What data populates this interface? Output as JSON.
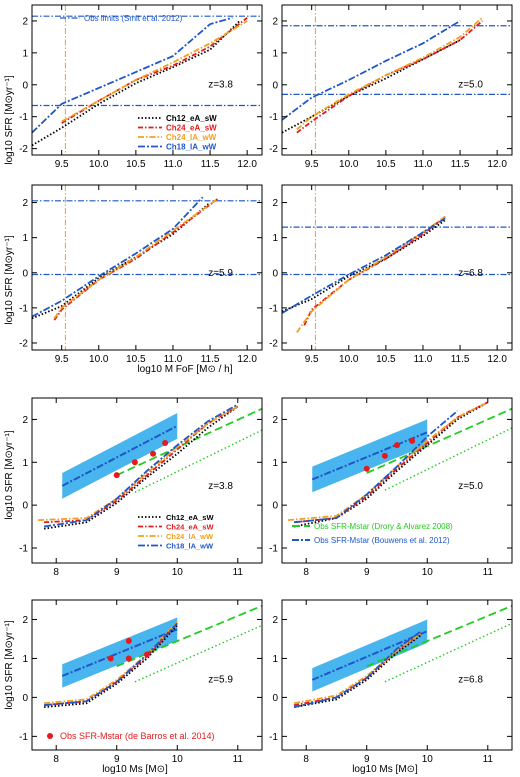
{
  "colors": {
    "ch12_eA_sW": "#000000",
    "ch24_eA_sW": "#e41a1c",
    "ch24_lA_wW": "#f0a020",
    "ch18_lA_wW": "#1f57c9",
    "obs_limit_line": "#1f57c9",
    "mass_limit_line": "#f0a020",
    "drory": "#22cc22",
    "bouwens": "#1f57c9",
    "bouwens_band": "#49b5ee",
    "debarros": "#e41a1c"
  },
  "top_panels": {
    "ylabel": "log10 SFR [M⊙yr⁻¹]",
    "xlabel": "log10 M FoF [M⊙ / h]",
    "xticks": [
      "9.5",
      "10.0",
      "10.5",
      "11.0",
      "11.5",
      "12.0"
    ],
    "yticks": [
      "-2",
      "-1",
      "0",
      "1",
      "2"
    ],
    "legend_obs": "Obs limits (Smit et al. 2012)"
  },
  "bottom_panels": {
    "ylabel": "log10 SFR [M⊙yr⁻¹]",
    "xlabel": "log10 Ms [M⊙]",
    "xticks": [
      "8",
      "9",
      "10",
      "11"
    ],
    "yticks": [
      "-1",
      "0",
      "1",
      "2"
    ],
    "legend_drory": "Obs SFR-Mstar (Drory & Alvarez 2008)",
    "legend_bouwens": "Obs SFR-Mstar (Bouwens et al. 2012)",
    "legend_debarros": "Obs SFR-Mstar (de Barros et al. 2014)"
  },
  "legend_models": [
    "Ch12_eA_sW",
    "Ch24_eA_sW",
    "Ch24_lA_wW",
    "Ch18_lA_wW"
  ],
  "chart_data": [
    {
      "type": "line",
      "panel": "top-1",
      "annotation": "z=3.8",
      "xlim": [
        9.1,
        12.2
      ],
      "ylim": [
        -2.2,
        2.5
      ],
      "obs_limits": [
        2.15,
        -0.65
      ],
      "mass_limit_x": 9.55,
      "series": [
        {
          "name": "Ch12_eA_sW",
          "x": [
            9.1,
            9.5,
            10.0,
            10.5,
            11.0,
            11.5,
            11.9
          ],
          "y": [
            -1.9,
            -1.35,
            -0.6,
            0.05,
            0.55,
            1.1,
            2.0
          ]
        },
        {
          "name": "Ch24_eA_sW",
          "x": [
            9.5,
            10.0,
            10.5,
            11.0,
            11.5,
            12.0
          ],
          "y": [
            -1.2,
            -0.5,
            0.15,
            0.6,
            1.2,
            2.1
          ]
        },
        {
          "name": "Ch24_lA_wW",
          "x": [
            9.5,
            10.0,
            10.5,
            11.0,
            11.5,
            12.0
          ],
          "y": [
            -1.15,
            -0.5,
            0.15,
            0.7,
            1.3,
            2.0
          ]
        },
        {
          "name": "Ch18_lA_wW",
          "x": [
            9.1,
            9.5,
            10.0,
            10.5,
            11.0,
            11.5,
            11.8
          ],
          "y": [
            -1.5,
            -0.6,
            -0.1,
            0.4,
            0.9,
            1.9,
            2.1
          ]
        }
      ]
    },
    {
      "type": "line",
      "panel": "top-2",
      "annotation": "z=5.0",
      "xlim": [
        9.1,
        12.2
      ],
      "ylim": [
        -2.2,
        2.5
      ],
      "obs_limits": [
        1.85,
        -0.3
      ],
      "mass_limit_x": 9.55,
      "series": [
        {
          "name": "Ch12_eA_sW",
          "x": [
            9.1,
            9.5,
            10.0,
            10.5,
            11.0,
            11.5
          ],
          "y": [
            -1.5,
            -1.0,
            -0.35,
            0.2,
            0.8,
            1.4
          ]
        },
        {
          "name": "Ch24_eA_sW",
          "x": [
            9.3,
            9.5,
            10.0,
            10.5,
            11.0,
            11.5,
            11.8
          ],
          "y": [
            -1.5,
            -1.15,
            -0.35,
            0.3,
            0.8,
            1.4,
            2.0
          ]
        },
        {
          "name": "Ch24_lA_wW",
          "x": [
            9.3,
            9.5,
            10.0,
            10.5,
            11.0,
            11.5,
            11.8
          ],
          "y": [
            -1.4,
            -1.0,
            -0.3,
            0.3,
            0.85,
            1.5,
            2.1
          ]
        },
        {
          "name": "Ch18_lA_wW",
          "x": [
            9.1,
            9.5,
            10.0,
            10.5,
            11.0,
            11.5
          ],
          "y": [
            -1.1,
            -0.4,
            0.15,
            0.75,
            1.3,
            2.0
          ]
        }
      ]
    },
    {
      "type": "line",
      "panel": "top-3",
      "annotation": "z=5.9",
      "xlim": [
        9.1,
        12.2
      ],
      "ylim": [
        -2.2,
        2.5
      ],
      "obs_limits": [
        2.05,
        -0.05
      ],
      "mass_limit_x": 9.55,
      "series": [
        {
          "name": "Ch12_eA_sW",
          "x": [
            9.1,
            9.5,
            10.0,
            10.5,
            11.0,
            11.5
          ],
          "y": [
            -1.3,
            -0.95,
            -0.15,
            0.45,
            1.1,
            2.0
          ]
        },
        {
          "name": "Ch24_eA_sW",
          "x": [
            9.4,
            9.5,
            10.0,
            10.5,
            11.0,
            11.6
          ],
          "y": [
            -1.35,
            -1.05,
            -0.2,
            0.4,
            1.15,
            2.1
          ]
        },
        {
          "name": "Ch24_lA_wW",
          "x": [
            9.4,
            9.5,
            10.0,
            10.5,
            11.0,
            11.6
          ],
          "y": [
            -1.3,
            -1.0,
            -0.2,
            0.45,
            1.2,
            2.1
          ]
        },
        {
          "name": "Ch18_lA_wW",
          "x": [
            9.1,
            9.5,
            10.0,
            10.5,
            11.0,
            11.4
          ],
          "y": [
            -1.25,
            -0.8,
            -0.1,
            0.55,
            1.25,
            2.15
          ]
        }
      ]
    },
    {
      "type": "line",
      "panel": "top-4",
      "annotation": "z=6.8",
      "xlim": [
        9.1,
        12.2
      ],
      "ylim": [
        -2.2,
        2.5
      ],
      "obs_limits": [
        1.3,
        -0.05
      ],
      "mass_limit_x": 9.55,
      "series": [
        {
          "name": "Ch12_eA_sW",
          "x": [
            9.1,
            9.5,
            10.0,
            10.5,
            11.0,
            11.3
          ],
          "y": [
            -1.1,
            -0.75,
            -0.1,
            0.4,
            1.05,
            1.5
          ]
        },
        {
          "name": "Ch24_eA_sW",
          "x": [
            9.4,
            9.5,
            10.0,
            10.5,
            11.0,
            11.3
          ],
          "y": [
            -1.5,
            -1.05,
            -0.2,
            0.4,
            1.1,
            1.6
          ]
        },
        {
          "name": "Ch24_lA_wW",
          "x": [
            9.3,
            9.5,
            10.0,
            10.5,
            11.0,
            11.3
          ],
          "y": [
            -1.7,
            -1.1,
            -0.2,
            0.45,
            1.15,
            1.6
          ]
        },
        {
          "name": "Ch18_lA_wW",
          "x": [
            9.1,
            9.5,
            10.0,
            10.5,
            11.0,
            11.3
          ],
          "y": [
            -1.15,
            -0.65,
            -0.05,
            0.5,
            1.15,
            1.55
          ]
        }
      ]
    },
    {
      "type": "line",
      "panel": "bottom-1",
      "annotation": "z=3.8",
      "xlim": [
        7.6,
        11.4
      ],
      "ylim": [
        -1.35,
        2.5
      ],
      "bouwens": {
        "x": [
          8.1,
          10.0
        ],
        "y": [
          0.45,
          1.85
        ],
        "halfwidth": 0.3
      },
      "drory": {
        "x": [
          9.0,
          11.4
        ],
        "y": [
          0.7,
          2.25
        ]
      },
      "drory_dotted": {
        "x": [
          9.3,
          11.4
        ],
        "y": [
          0.3,
          1.75
        ]
      },
      "debarros": {
        "x": [],
        "y": []
      },
      "obs_points": {
        "x": [
          9.0,
          9.3,
          9.6,
          9.8
        ],
        "y": [
          0.7,
          1.0,
          1.2,
          1.45
        ]
      },
      "series": [
        {
          "name": "Ch12_eA_sW",
          "x": [
            7.8,
            8.5,
            9.0,
            9.5,
            10.0,
            10.5,
            11.0
          ],
          "y": [
            -0.55,
            -0.4,
            0.05,
            0.65,
            1.2,
            1.8,
            2.3
          ]
        },
        {
          "name": "Ch24_eA_sW",
          "x": [
            7.8,
            8.5,
            9.0,
            9.5,
            10.0,
            10.5,
            11.0
          ],
          "y": [
            -0.4,
            -0.35,
            0.1,
            0.7,
            1.3,
            1.9,
            2.3
          ]
        },
        {
          "name": "Ch24_lA_wW",
          "x": [
            7.7,
            8.5,
            9.0,
            9.5,
            10.0,
            10.5,
            11.0
          ],
          "y": [
            -0.35,
            -0.3,
            0.15,
            0.75,
            1.35,
            1.9,
            2.3
          ]
        },
        {
          "name": "Ch18_lA_wW",
          "x": [
            7.8,
            8.5,
            9.0,
            9.5,
            10.0,
            10.5,
            11.0
          ],
          "y": [
            -0.5,
            -0.35,
            0.15,
            0.8,
            1.4,
            1.95,
            2.35
          ]
        }
      ]
    },
    {
      "type": "line",
      "panel": "bottom-2",
      "annotation": "z=5.0",
      "xlim": [
        7.6,
        11.4
      ],
      "ylim": [
        -1.35,
        2.5
      ],
      "bouwens": {
        "x": [
          8.1,
          10.0
        ],
        "y": [
          0.6,
          1.7
        ],
        "halfwidth": 0.3
      },
      "drory": {
        "x": [
          9.0,
          11.4
        ],
        "y": [
          0.75,
          2.25
        ]
      },
      "drory_dotted": {
        "x": [
          9.3,
          11.4
        ],
        "y": [
          0.35,
          1.8
        ]
      },
      "debarros": {
        "x": [],
        "y": []
      },
      "obs_points": {
        "x": [
          9.0,
          9.3,
          9.5,
          9.75
        ],
        "y": [
          0.85,
          1.15,
          1.4,
          1.5
        ]
      },
      "series": [
        {
          "name": "Ch12_eA_sW",
          "x": [
            7.8,
            8.5,
            9.0,
            9.5,
            10.0,
            10.5,
            11.0
          ],
          "y": [
            -0.5,
            -0.3,
            0.15,
            0.8,
            1.4,
            2.0,
            2.4
          ]
        },
        {
          "name": "Ch24_eA_sW",
          "x": [
            7.8,
            8.5,
            9.0,
            9.5,
            10.0,
            10.5,
            11.0
          ],
          "y": [
            -0.4,
            -0.3,
            0.2,
            0.85,
            1.45,
            2.05,
            2.4
          ]
        },
        {
          "name": "Ch24_lA_wW",
          "x": [
            7.7,
            8.5,
            9.0,
            9.5,
            10.0,
            10.5,
            11.0
          ],
          "y": [
            -0.35,
            -0.25,
            0.25,
            0.9,
            1.5,
            2.05,
            2.4
          ]
        },
        {
          "name": "Ch18_lA_wW",
          "x": [
            7.8,
            8.5,
            9.0,
            9.5,
            10.0,
            10.5
          ],
          "y": [
            -0.4,
            -0.3,
            0.25,
            0.9,
            1.6,
            2.2
          ]
        }
      ]
    },
    {
      "type": "line",
      "panel": "bottom-3",
      "annotation": "z=5.9",
      "xlim": [
        7.6,
        11.4
      ],
      "ylim": [
        -1.35,
        2.5
      ],
      "bouwens": {
        "x": [
          8.1,
          10.0
        ],
        "y": [
          0.55,
          1.75
        ],
        "halfwidth": 0.3
      },
      "drory": {
        "x": [
          9.0,
          11.4
        ],
        "y": [
          0.8,
          2.35
        ]
      },
      "drory_dotted": {
        "x": [
          9.3,
          11.4
        ],
        "y": [
          0.4,
          1.85
        ]
      },
      "debarros": {
        "x": [
          8.9,
          9.2,
          9.2,
          9.5
        ],
        "y": [
          1.0,
          1.45,
          1.0,
          1.1
        ]
      },
      "obs_points": {
        "x": [],
        "y": []
      },
      "series": [
        {
          "name": "Ch12_eA_sW",
          "x": [
            7.8,
            8.5,
            9.0,
            9.5,
            10.0
          ],
          "y": [
            -0.25,
            -0.15,
            0.35,
            1.0,
            1.85
          ]
        },
        {
          "name": "Ch24_eA_sW",
          "x": [
            7.8,
            8.5,
            9.0,
            9.5,
            10.0
          ],
          "y": [
            -0.2,
            -0.1,
            0.4,
            1.05,
            1.9
          ]
        },
        {
          "name": "Ch24_lA_wW",
          "x": [
            7.8,
            8.5,
            9.0,
            9.5,
            10.0
          ],
          "y": [
            -0.15,
            -0.05,
            0.45,
            1.1,
            1.95
          ]
        },
        {
          "name": "Ch18_lA_wW",
          "x": [
            7.8,
            8.5,
            9.0,
            9.5,
            10.0
          ],
          "y": [
            -0.2,
            -0.1,
            0.4,
            1.1,
            1.9
          ]
        }
      ]
    },
    {
      "type": "line",
      "panel": "bottom-4",
      "annotation": "z=6.8",
      "xlim": [
        7.6,
        11.4
      ],
      "ylim": [
        -1.35,
        2.5
      ],
      "bouwens": {
        "x": [
          8.1,
          10.0
        ],
        "y": [
          0.45,
          1.7
        ],
        "halfwidth": 0.3
      },
      "drory": {
        "x": [
          9.0,
          11.4
        ],
        "y": [
          0.8,
          2.35
        ]
      },
      "drory_dotted": {
        "x": [
          9.3,
          11.4
        ],
        "y": [
          0.4,
          1.9
        ]
      },
      "debarros": {
        "x": [],
        "y": []
      },
      "obs_points": {
        "x": [],
        "y": []
      },
      "series": [
        {
          "name": "Ch12_eA_sW",
          "x": [
            7.8,
            8.5,
            9.0,
            9.5,
            9.9
          ],
          "y": [
            -0.25,
            -0.05,
            0.45,
            1.15,
            1.6
          ]
        },
        {
          "name": "Ch24_eA_sW",
          "x": [
            7.8,
            8.5,
            9.0,
            9.5,
            9.9
          ],
          "y": [
            -0.2,
            0.0,
            0.5,
            1.2,
            1.65
          ]
        },
        {
          "name": "Ch24_lA_wW",
          "x": [
            7.8,
            8.5,
            9.0,
            9.5,
            9.9
          ],
          "y": [
            -0.15,
            0.05,
            0.55,
            1.2,
            1.65
          ]
        },
        {
          "name": "Ch18_lA_wW",
          "x": [
            7.8,
            8.5,
            9.0,
            9.5,
            9.9
          ],
          "y": [
            -0.25,
            0.0,
            0.5,
            1.25,
            1.7
          ]
        }
      ]
    }
  ]
}
